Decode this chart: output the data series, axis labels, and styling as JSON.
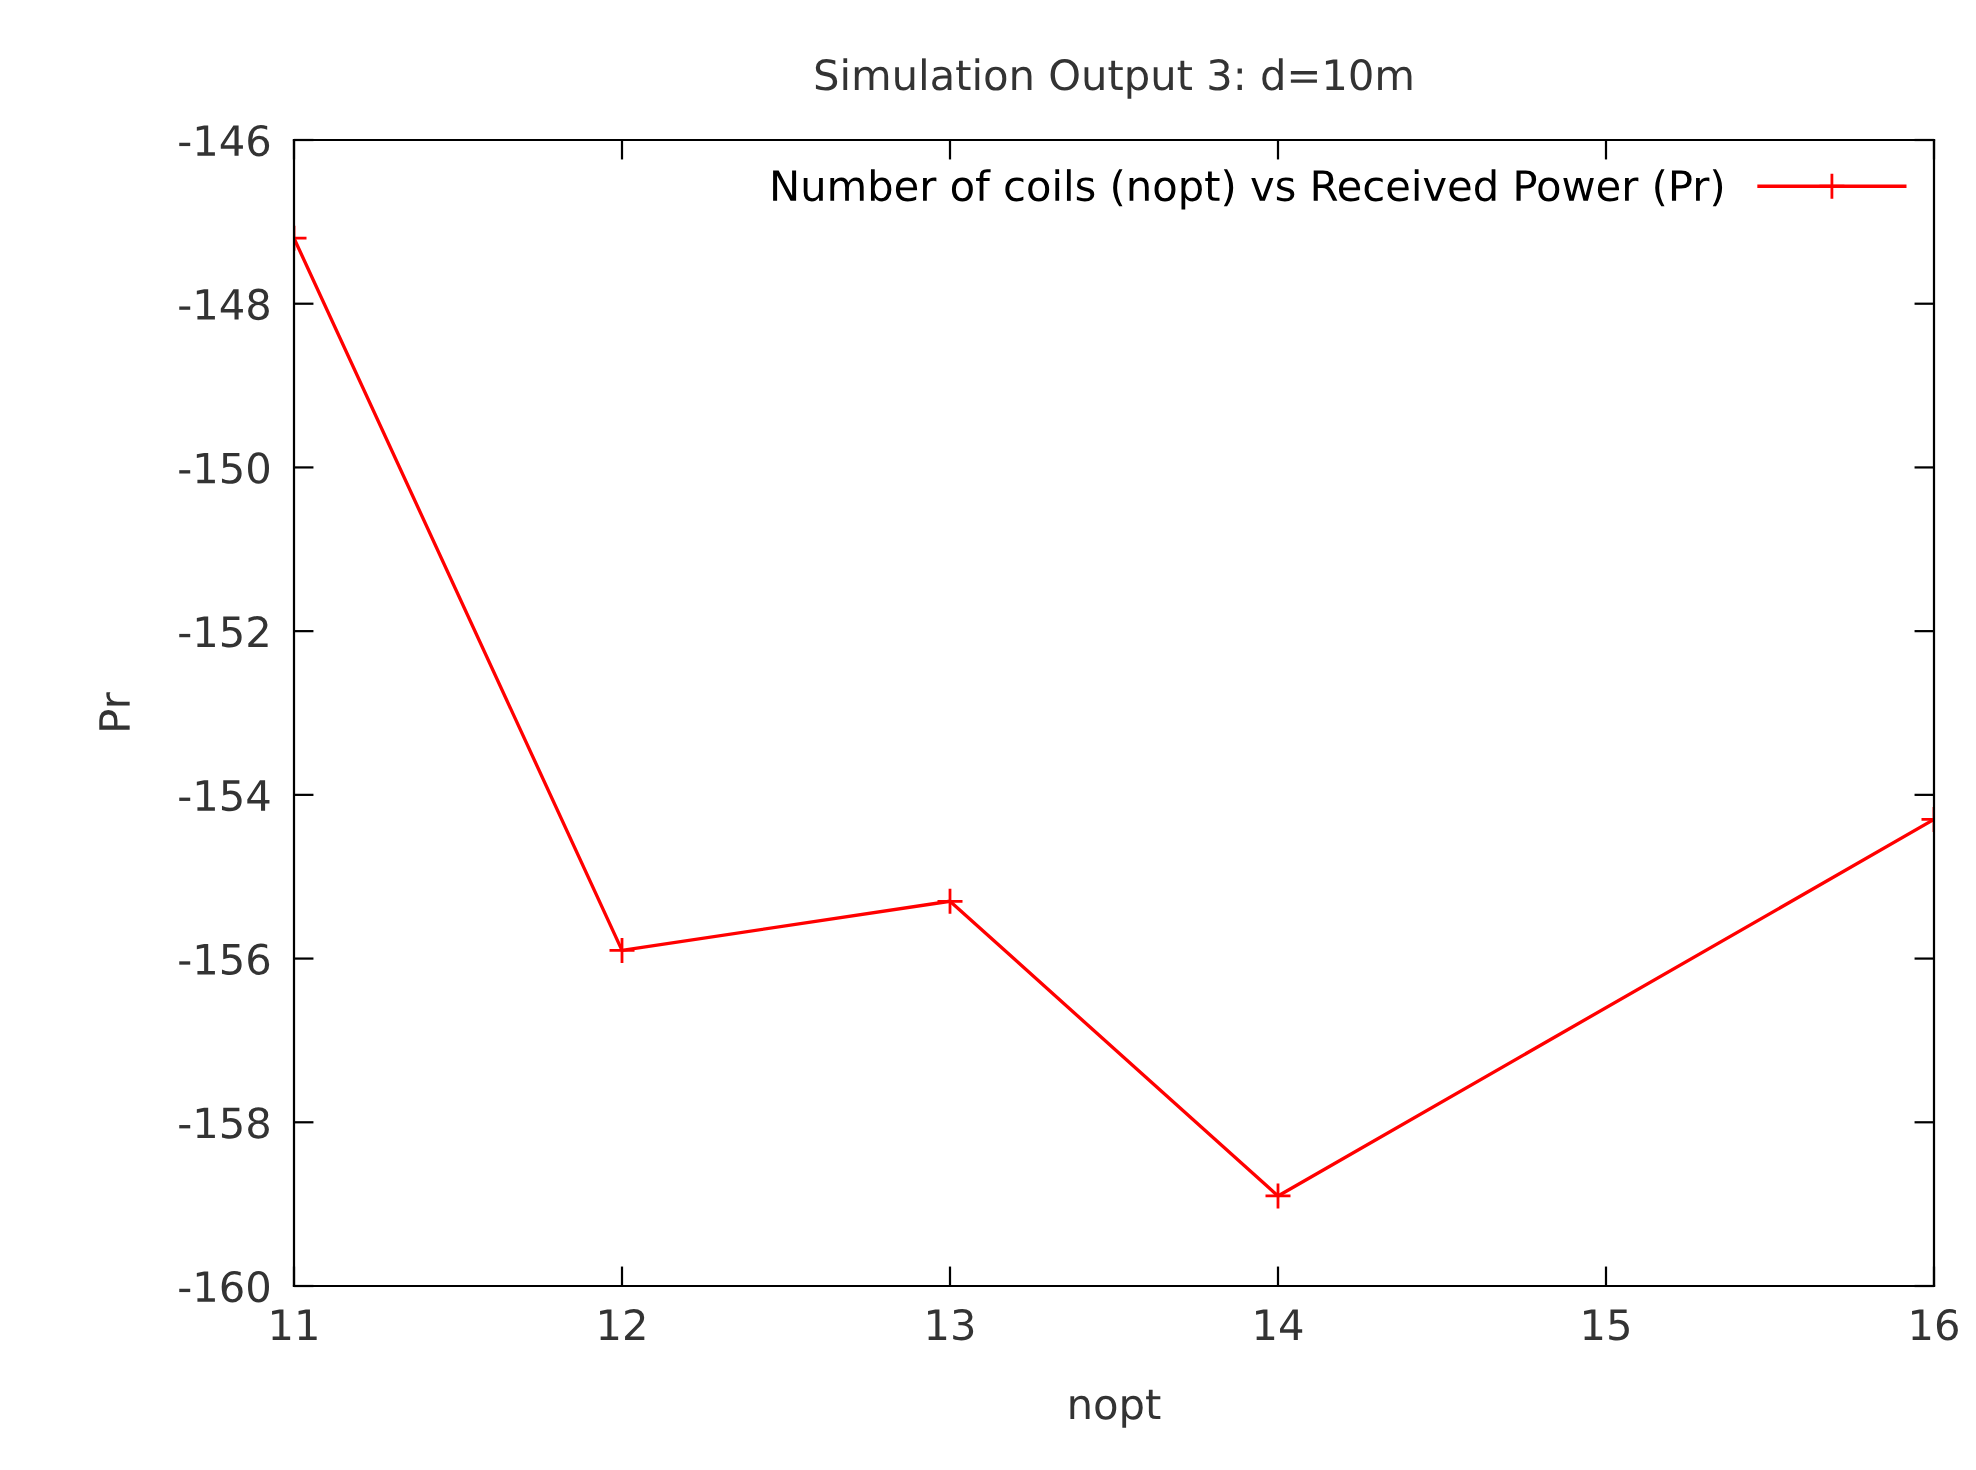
{
  "chart_data": {
    "type": "line",
    "title": "Simulation Output 3: d=10m",
    "xlabel": "nopt",
    "ylabel": "Pr",
    "x": [
      11,
      12,
      13,
      14,
      16
    ],
    "series": [
      {
        "name": "Number of coils (nopt) vs Received Power (Pr)",
        "color": "#ff0000",
        "values": [
          -147.2,
          -155.9,
          -155.3,
          -158.9,
          -154.3
        ]
      }
    ],
    "xlim": [
      11,
      16
    ],
    "xticks": [
      11,
      12,
      13,
      14,
      15,
      16
    ],
    "ylim": [
      -160,
      -146
    ],
    "yticks": [
      -160,
      -158,
      -156,
      -154,
      -152,
      -150,
      -148,
      -146
    ],
    "grid": false,
    "legend": "top right",
    "marker": "cross",
    "line_style": "solid"
  }
}
